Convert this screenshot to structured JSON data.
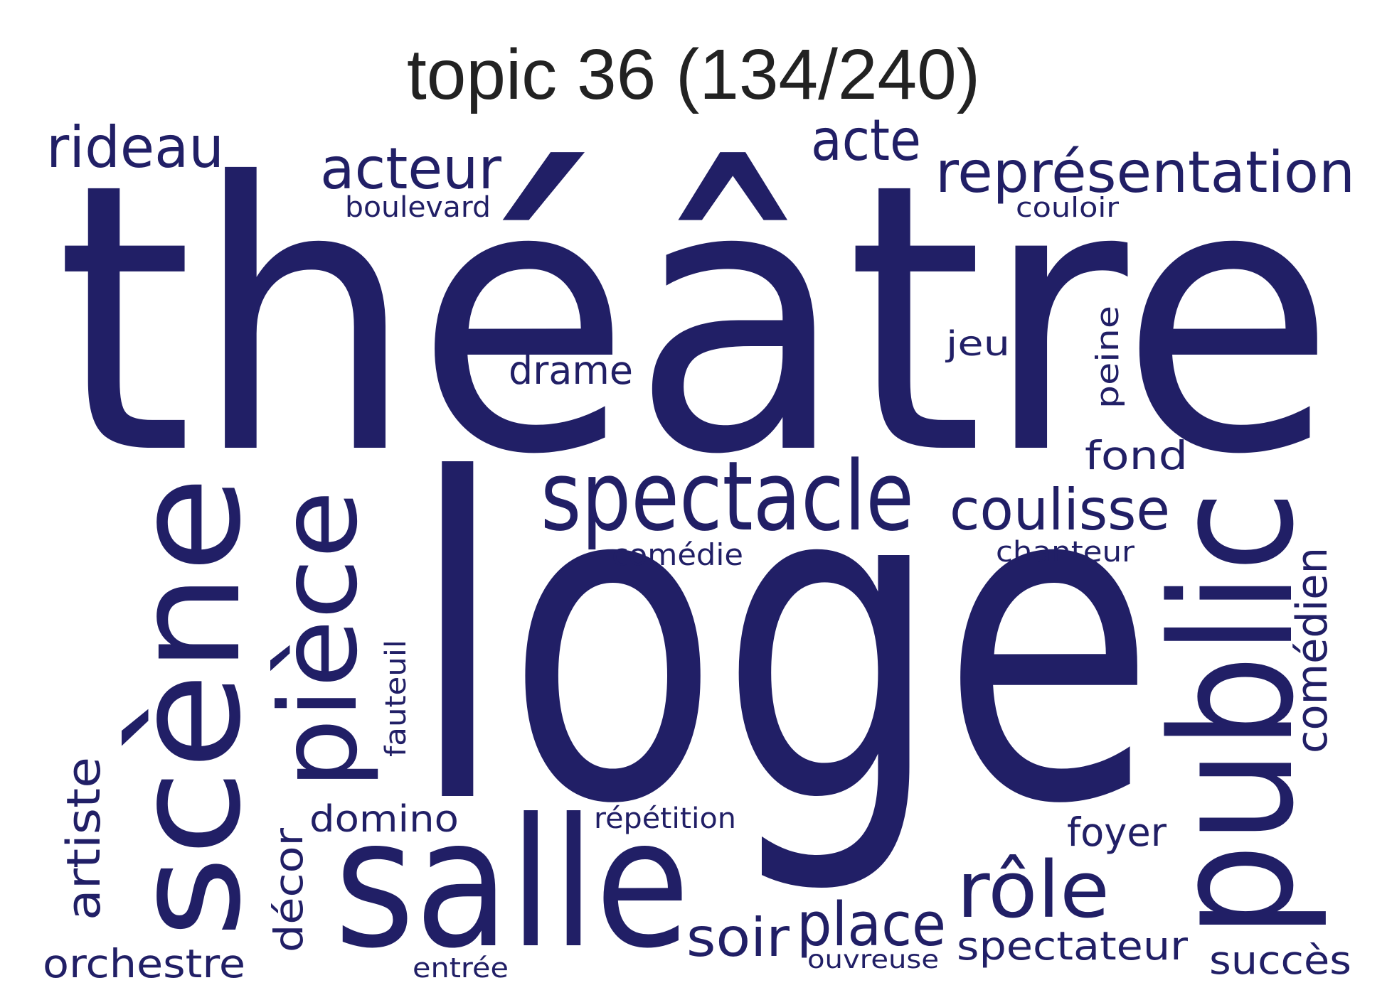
{
  "title": "topic 36 (134/240)",
  "word_color": "#211f66",
  "words": [
    {
      "text": "théâtre",
      "orientation": "horizontal"
    },
    {
      "text": "loge",
      "orientation": "horizontal"
    },
    {
      "text": "scène",
      "orientation": "vertical"
    },
    {
      "text": "public",
      "orientation": "vertical"
    },
    {
      "text": "salle",
      "orientation": "horizontal"
    },
    {
      "text": "pièce",
      "orientation": "vertical"
    },
    {
      "text": "spectacle",
      "orientation": "horizontal"
    },
    {
      "text": "rôle",
      "orientation": "horizontal"
    },
    {
      "text": "représentation",
      "orientation": "horizontal"
    },
    {
      "text": "acteur",
      "orientation": "horizontal"
    },
    {
      "text": "rideau",
      "orientation": "horizontal"
    },
    {
      "text": "acte",
      "orientation": "horizontal"
    },
    {
      "text": "coulisse",
      "orientation": "horizontal"
    },
    {
      "text": "place",
      "orientation": "horizontal"
    },
    {
      "text": "soir",
      "orientation": "horizontal"
    },
    {
      "text": "artiste",
      "orientation": "vertical"
    },
    {
      "text": "comédien",
      "orientation": "vertical"
    },
    {
      "text": "spectateur",
      "orientation": "horizontal"
    },
    {
      "text": "orchestre",
      "orientation": "horizontal"
    },
    {
      "text": "succès",
      "orientation": "horizontal"
    },
    {
      "text": "domino",
      "orientation": "horizontal"
    },
    {
      "text": "décor",
      "orientation": "vertical"
    },
    {
      "text": "fond",
      "orientation": "horizontal"
    },
    {
      "text": "drame",
      "orientation": "horizontal"
    },
    {
      "text": "foyer",
      "orientation": "horizontal"
    },
    {
      "text": "jeu",
      "orientation": "horizontal"
    },
    {
      "text": "peine",
      "orientation": "vertical"
    },
    {
      "text": "fauteuil",
      "orientation": "vertical"
    },
    {
      "text": "comédie",
      "orientation": "horizontal"
    },
    {
      "text": "chanteur",
      "orientation": "horizontal"
    },
    {
      "text": "répétition",
      "orientation": "horizontal"
    },
    {
      "text": "boulevard",
      "orientation": "horizontal"
    },
    {
      "text": "couloir",
      "orientation": "horizontal"
    },
    {
      "text": "ouvreuse",
      "orientation": "horizontal"
    },
    {
      "text": "entrée",
      "orientation": "horizontal"
    }
  ]
}
